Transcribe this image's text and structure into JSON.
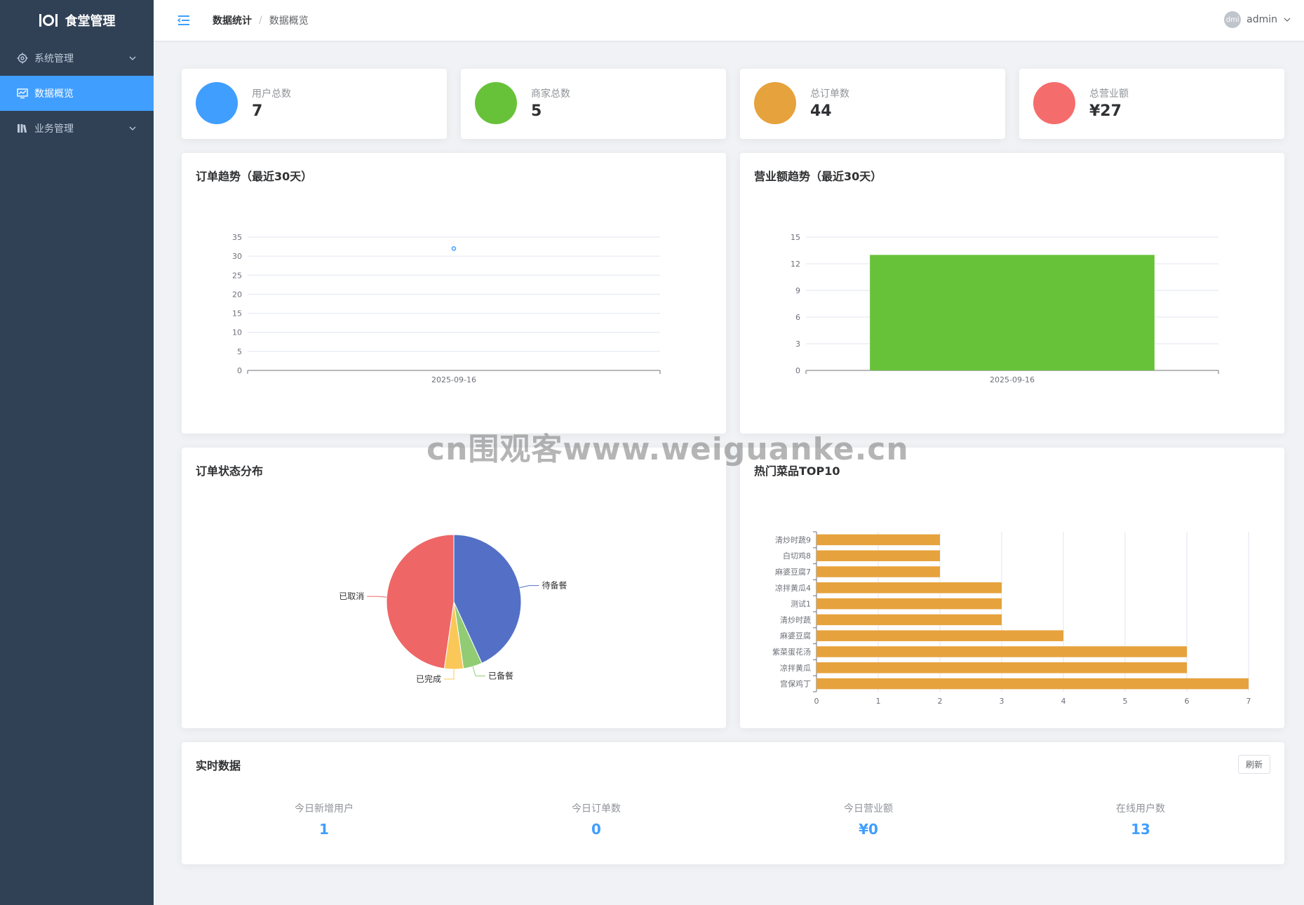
{
  "app": {
    "title": "食堂管理"
  },
  "sidebar": {
    "items": [
      {
        "label": "系统管理",
        "icon": "gear-icon",
        "expandable": true
      },
      {
        "label": "数据概览",
        "icon": "chart-icon",
        "active": true
      },
      {
        "label": "业务管理",
        "icon": "library-icon",
        "expandable": true
      }
    ]
  },
  "header": {
    "breadcrumb": [
      "数据统计",
      "数据概览"
    ],
    "separator": "/",
    "user": {
      "avatar_text": "dmi",
      "name": "admin"
    }
  },
  "stats": [
    {
      "label": "用户总数",
      "value": "7",
      "color": "#409eff"
    },
    {
      "label": "商家总数",
      "value": "5",
      "color": "#67c23a"
    },
    {
      "label": "总订单数",
      "value": "44",
      "color": "#e6a23c"
    },
    {
      "label": "总营业额",
      "value": "¥27",
      "color": "#f56c6c"
    }
  ],
  "charts": {
    "order_trend_title": "订单趋势（最近30天）",
    "revenue_trend_title": "营业额趋势（最近30天）",
    "status_title": "订单状态分布",
    "top_dishes_title": "热门菜品TOP10"
  },
  "chart_data": [
    {
      "type": "line",
      "title": "订单趋势（最近30天）",
      "x": [
        "2025-09-16"
      ],
      "y": [
        32
      ],
      "ylim": [
        0,
        35
      ],
      "yticks": [
        0,
        5,
        10,
        15,
        20,
        25,
        30,
        35
      ],
      "color": "#409eff"
    },
    {
      "type": "bar",
      "title": "营业额趋势（最近30天）",
      "categories": [
        "2025-09-16"
      ],
      "values": [
        13
      ],
      "ylim": [
        0,
        15
      ],
      "yticks": [
        0,
        3,
        6,
        9,
        12,
        15
      ],
      "color": "#67c23a"
    },
    {
      "type": "pie",
      "title": "订单状态分布",
      "slices": [
        {
          "label": "待备餐",
          "value": 19,
          "color": "#5470c6"
        },
        {
          "label": "已备餐",
          "value": 2,
          "color": "#91cc75"
        },
        {
          "label": "已完成",
          "value": 2,
          "color": "#fac858"
        },
        {
          "label": "已取消",
          "value": 21,
          "color": "#ee6666"
        }
      ]
    },
    {
      "type": "bar",
      "orientation": "horizontal",
      "title": "热门菜品TOP10",
      "categories": [
        "清炒时蔬9",
        "白切鸡8",
        "麻婆豆腐7",
        "凉拌黄瓜4",
        "测试1",
        "清炒时蔬",
        "麻婆豆腐",
        "紫菜蛋花汤",
        "凉拌黄瓜",
        "宫保鸡丁"
      ],
      "values": [
        2,
        2,
        2,
        3,
        3,
        3,
        4,
        6,
        6,
        7
      ],
      "xlim": [
        0,
        7
      ],
      "xticks": [
        0,
        1,
        2,
        3,
        4,
        5,
        6,
        7
      ],
      "color": "#e6a23c"
    }
  ],
  "realtime": {
    "title": "实时数据",
    "refresh_label": "刷新",
    "items": [
      {
        "label": "今日新增用户",
        "value": "1"
      },
      {
        "label": "今日订单数",
        "value": "0"
      },
      {
        "label": "今日营业额",
        "value": "¥0"
      },
      {
        "label": "在线用户数",
        "value": "13"
      }
    ]
  },
  "watermark": "cn围观客www.weiguanke.cn"
}
